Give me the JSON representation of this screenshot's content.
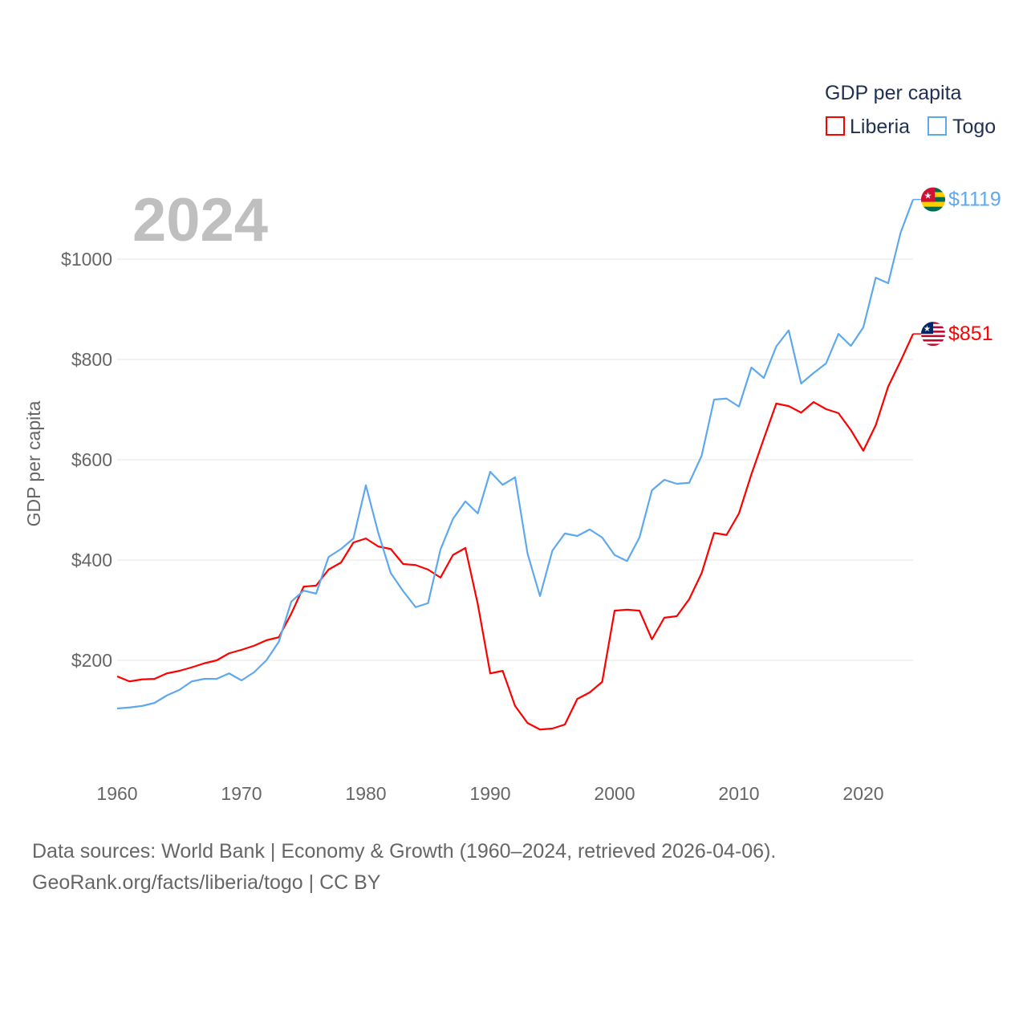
{
  "chart_data": {
    "type": "line",
    "title": "GDP per capita",
    "year_label": "2024",
    "xlabel": "",
    "ylabel": "GDP per capita",
    "xlim": [
      1960,
      2024
    ],
    "ylim": [
      0,
      1119
    ],
    "x_ticks": [
      1960,
      1970,
      1980,
      1990,
      2000,
      2010,
      2020
    ],
    "x_tick_labels": [
      "1960",
      "1970",
      "1980",
      "1990",
      "2000",
      "2010",
      "2020"
    ],
    "y_ticks": [
      200,
      400,
      600,
      800,
      1000
    ],
    "y_tick_labels": [
      "$200",
      "$400",
      "$600",
      "$800",
      "$1000"
    ],
    "grid": true,
    "legend_placement": "top-right",
    "x": [
      1960,
      1961,
      1962,
      1963,
      1964,
      1965,
      1966,
      1967,
      1968,
      1969,
      1970,
      1971,
      1972,
      1973,
      1974,
      1975,
      1976,
      1977,
      1978,
      1979,
      1980,
      1981,
      1982,
      1983,
      1984,
      1985,
      1986,
      1987,
      1988,
      1989,
      1990,
      1991,
      1992,
      1993,
      1994,
      1995,
      1996,
      1997,
      1998,
      1999,
      2000,
      2001,
      2002,
      2003,
      2004,
      2005,
      2006,
      2007,
      2008,
      2009,
      2010,
      2011,
      2012,
      2013,
      2014,
      2015,
      2016,
      2017,
      2018,
      2019,
      2020,
      2021,
      2022,
      2023,
      2024
    ],
    "series": [
      {
        "name": "Liberia",
        "color": "#ff0000",
        "end_label": "$851",
        "flag": "liberia-flag",
        "values": [
          168,
          158,
          162,
          163,
          174,
          179,
          186,
          194,
          200,
          214,
          221,
          229,
          240,
          246,
          293,
          347,
          349,
          381,
          395,
          435,
          443,
          427,
          422,
          392,
          390,
          381,
          365,
          410,
          424,
          312,
          174,
          179,
          109,
          75,
          62,
          64,
          72,
          123,
          136,
          157,
          299,
          301,
          299,
          242,
          285,
          288,
          322,
          374,
          454,
          450,
          493,
          571,
          642,
          712,
          707,
          694,
          715,
          701,
          693,
          659,
          618,
          669,
          746,
          797,
          851
        ]
      },
      {
        "name": "Togo",
        "color": "#5ea8ee",
        "end_label": "$1119",
        "flag": "togo-flag",
        "values": [
          104,
          106,
          109,
          115,
          130,
          141,
          158,
          163,
          163,
          174,
          160,
          176,
          200,
          237,
          317,
          339,
          333,
          406,
          422,
          443,
          549,
          454,
          374,
          338,
          306,
          314,
          421,
          482,
          517,
          493,
          576,
          550,
          565,
          413,
          328,
          419,
          453,
          448,
          461,
          445,
          410,
          398,
          445,
          539,
          560,
          552,
          554,
          608,
          720,
          722,
          706,
          784,
          763,
          826,
          858,
          752,
          773,
          792,
          851,
          827,
          864,
          963,
          952,
          1053,
          1119
        ]
      }
    ]
  },
  "footer": {
    "line1": "Data sources: World Bank | Economy & Growth (1960–2024, retrieved 2026-04-06).",
    "line2": "GeoRank.org/facts/liberia/togo | CC BY"
  }
}
